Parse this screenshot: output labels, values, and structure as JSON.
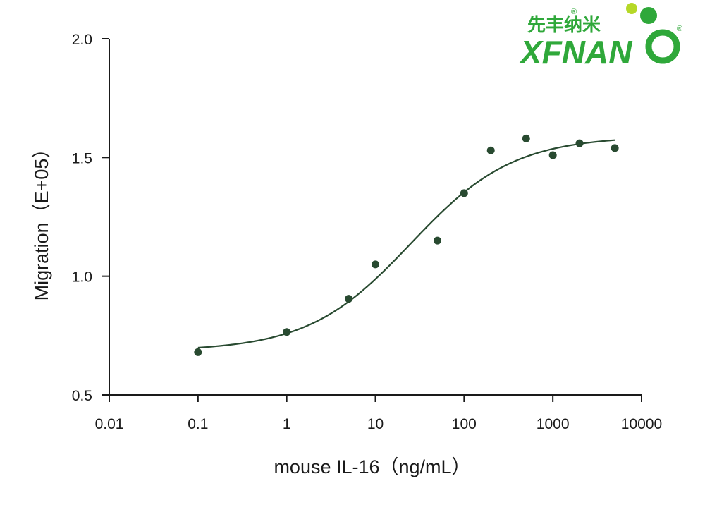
{
  "logo": {
    "chinese": "先丰纳米",
    "english": "XFNAN",
    "registered": "®"
  },
  "colors": {
    "series": "#284a30",
    "axis": "#1a1a1a",
    "logo_green": "#2fa83a",
    "logo_lime": "#b5d827"
  },
  "chart_data": {
    "type": "scatter",
    "xlabel": "mouse IL-16（ng/mL）",
    "ylabel": "Migration（E+05）",
    "x_scale": "log",
    "xlim": [
      0.01,
      10000
    ],
    "ylim": [
      0.5,
      2.0
    ],
    "x_ticks": [
      {
        "value": 0.01,
        "label": "0.01"
      },
      {
        "value": 0.1,
        "label": "0.1"
      },
      {
        "value": 1,
        "label": "1"
      },
      {
        "value": 10,
        "label": "10"
      },
      {
        "value": 100,
        "label": "100"
      },
      {
        "value": 1000,
        "label": "1000"
      },
      {
        "value": 10000,
        "label": "10000"
      }
    ],
    "y_ticks": [
      {
        "value": 0.5,
        "label": "0.5"
      },
      {
        "value": 1.0,
        "label": "1.0"
      },
      {
        "value": 1.5,
        "label": "1.5"
      },
      {
        "value": 2.0,
        "label": "2.0"
      }
    ],
    "grid": false,
    "points": [
      {
        "x": 0.1,
        "y": 0.68
      },
      {
        "x": 1,
        "y": 0.765
      },
      {
        "x": 5,
        "y": 0.905
      },
      {
        "x": 10,
        "y": 1.05
      },
      {
        "x": 50,
        "y": 1.15
      },
      {
        "x": 100,
        "y": 1.35
      },
      {
        "x": 200,
        "y": 1.53
      },
      {
        "x": 500,
        "y": 1.58
      },
      {
        "x": 1000,
        "y": 1.51
      },
      {
        "x": 2000,
        "y": 1.56
      },
      {
        "x": 5000,
        "y": 1.54
      }
    ],
    "fit_curve": {
      "type": "four-parameter-logistic",
      "x_range": [
        0.1,
        5000
      ],
      "bottom": 0.685,
      "top": 1.59,
      "ec50": 25,
      "hill": 0.75
    }
  }
}
